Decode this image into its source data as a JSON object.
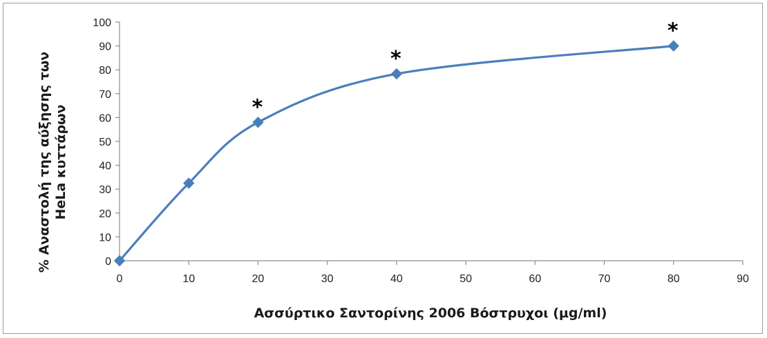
{
  "chart_data": {
    "type": "line",
    "title": "",
    "xlabel": "Ασσύρτικο Σαντορίνης 2006 Βόστρυχοι (μg/ml)",
    "ylabel_lines": [
      "% Αναστολή της αύξησης των",
      "HeLa κυττάρων"
    ],
    "xlim": [
      0,
      90
    ],
    "ylim": [
      0,
      100
    ],
    "x_ticks": [
      0,
      10,
      20,
      30,
      40,
      50,
      60,
      70,
      80,
      90
    ],
    "y_ticks": [
      0,
      10,
      20,
      30,
      40,
      50,
      60,
      70,
      80,
      90,
      100
    ],
    "series": [
      {
        "x": [
          0,
          10,
          20,
          40,
          80
        ],
        "values": [
          0,
          32.5,
          58,
          78.3,
          90
        ],
        "color": "#4a7ebb",
        "marker": "diamond",
        "smooth": true
      }
    ],
    "annotations": [
      {
        "x": 20,
        "text": "*"
      },
      {
        "x": 40,
        "text": "*"
      },
      {
        "x": 80,
        "text": "*"
      }
    ],
    "grid": false,
    "legend": "none"
  }
}
